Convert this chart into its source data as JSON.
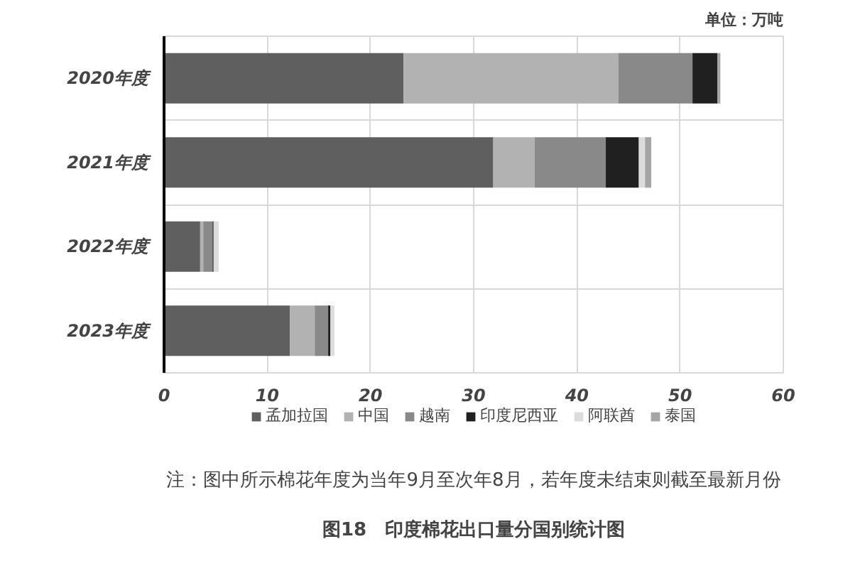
{
  "chart_data": {
    "type": "bar",
    "orientation": "horizontal",
    "stacked": true,
    "title": "图18　印度棉花出口量分国别统计图",
    "subtitle": "单位：万吨",
    "annotations": [
      "注：图中所示棉花年度为当年9月至次年8月，若年度未结束则截至最新月份"
    ],
    "categories": [
      "2020年度",
      "2021年度",
      "2022年度",
      "2023年度"
    ],
    "series": [
      {
        "name": "孟加拉国",
        "color": "#5f5f5f",
        "values": [
          23.2,
          31.9,
          3.5,
          12.2
        ]
      },
      {
        "name": "中国",
        "color": "#b2b2b2",
        "values": [
          20.8,
          4.0,
          0.3,
          2.4
        ]
      },
      {
        "name": "越南",
        "color": "#898989",
        "values": [
          7.2,
          6.9,
          0.9,
          1.3
        ]
      },
      {
        "name": "印度尼西亚",
        "color": "#202020",
        "values": [
          2.4,
          3.2,
          0.1,
          0.2
        ]
      },
      {
        "name": "阿联酋",
        "color": "#dcdcdc",
        "values": [
          null,
          0.6,
          0.5,
          0.4
        ]
      },
      {
        "name": "泰国",
        "color": "#a5a5a5",
        "values": [
          0.3,
          0.6,
          null,
          null
        ]
      }
    ],
    "xlim": [
      0,
      60
    ],
    "xticks": [
      0,
      10,
      20,
      30,
      40,
      50,
      60
    ],
    "grid": true,
    "legend": "bottom"
  }
}
